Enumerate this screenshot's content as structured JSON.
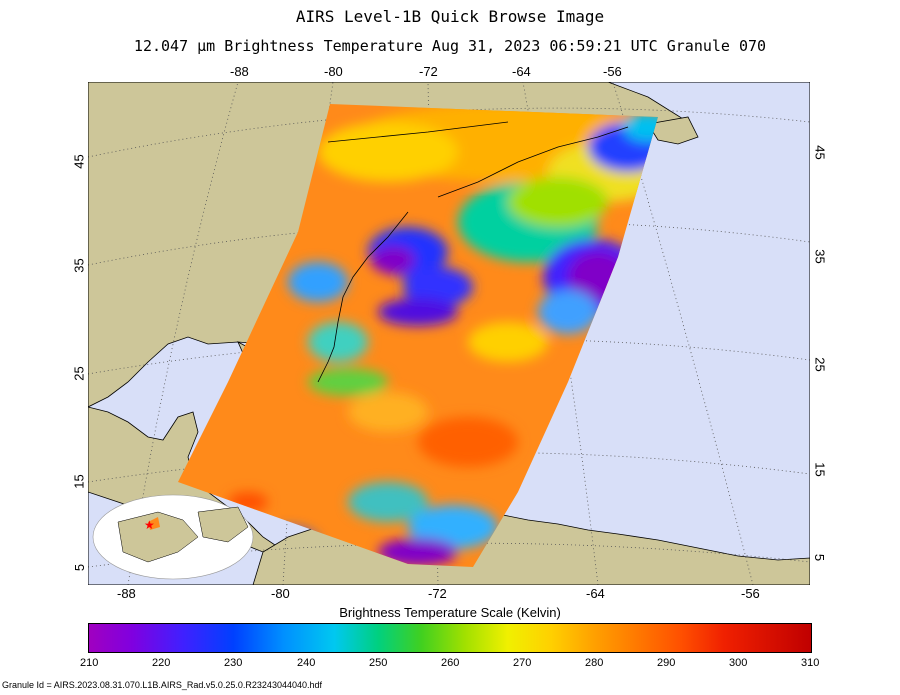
{
  "title": "AIRS Level-1B Quick Browse Image",
  "subtitle": "12.047 μm Brightness Temperature   Aug 31, 2023 06:59:21 UTC  Granule 070",
  "top_lon_ticks": [
    "-88",
    "-80",
    "-72",
    "-64",
    "-56"
  ],
  "bottom_lon_ticks": [
    "-88",
    "-80",
    "-72",
    "-64",
    "-56"
  ],
  "left_lat_ticks": [
    "45",
    "35",
    "25",
    "15",
    "5"
  ],
  "right_lat_ticks": [
    "45",
    "35",
    "25",
    "15",
    "5"
  ],
  "colorbar": {
    "title": "Brightness Temperature Scale (Kelvin)",
    "ticks": [
      "210",
      "220",
      "230",
      "240",
      "250",
      "260",
      "270",
      "280",
      "290",
      "300",
      "310"
    ],
    "min": 210,
    "max": 310,
    "units": "Kelvin"
  },
  "footer": "Granule Id = AIRS.2023.08.31.070.L1B.AIRS_Rad.v5.0.25.0.R23243044040.hdf",
  "colors": {
    "land": "#cdc699",
    "ocean": "#d8dff8",
    "swath_warm": "#ff8a1a",
    "swath_cold": "#8000c8"
  }
}
